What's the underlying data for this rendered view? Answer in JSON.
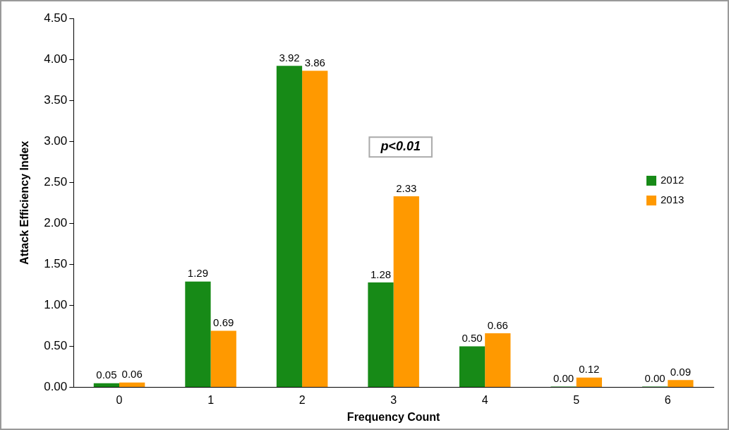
{
  "chart_data": {
    "type": "bar",
    "xlabel": "Frequency Count",
    "ylabel": "Attack Efficiency Index",
    "categories": [
      "0",
      "1",
      "2",
      "3",
      "4",
      "5",
      "6"
    ],
    "series": [
      {
        "name": "2012",
        "color": "#178a17",
        "values": [
          0.05,
          1.29,
          3.92,
          1.28,
          0.5,
          0,
          0
        ],
        "value_labels": [
          "0.05",
          "1.29",
          "3.92",
          "1.28",
          "0.50",
          "0.00",
          "0.00"
        ]
      },
      {
        "name": "2013",
        "color": "#ff9900",
        "values": [
          0.06,
          0.69,
          3.86,
          2.33,
          0.66,
          0.12,
          0.09
        ],
        "value_labels": [
          "0.06",
          "0.69",
          "3.86",
          "2.33",
          "0.66",
          "0.12",
          "0.09"
        ]
      }
    ],
    "ylim": [
      0,
      4.5
    ],
    "yticks": [
      {
        "value": 0,
        "label": "0.00"
      },
      {
        "value": 0.5,
        "label": "0.50"
      },
      {
        "value": 1,
        "label": "1.00"
      },
      {
        "value": 1.5,
        "label": "1.50"
      },
      {
        "value": 2,
        "label": "2.00"
      },
      {
        "value": 2.5,
        "label": "2.50"
      },
      {
        "value": 3,
        "label": "3.00"
      },
      {
        "value": 3.5,
        "label": "3.50"
      },
      {
        "value": 4,
        "label": "4.00"
      },
      {
        "value": 4.5,
        "label": "4.50"
      }
    ],
    "annotations": [
      "p<0.01"
    ],
    "grid": false,
    "legend": "right"
  }
}
